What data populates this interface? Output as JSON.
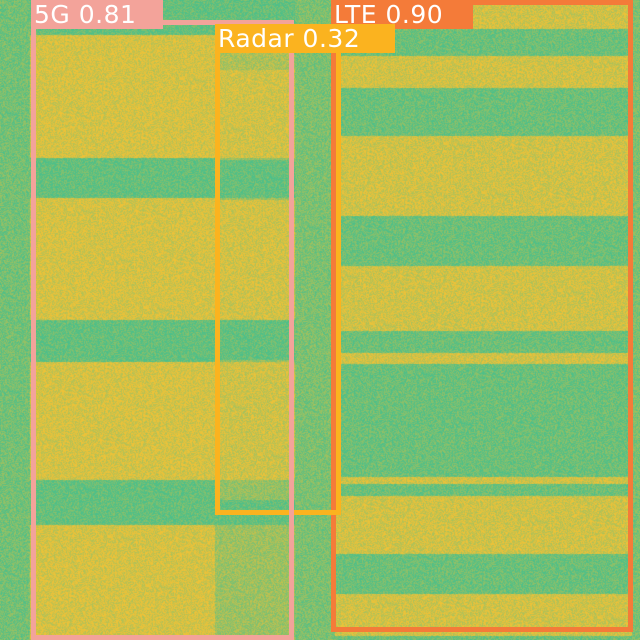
{
  "detections": [
    {
      "class": "LTE",
      "score": "0.90",
      "label": "LTE 0.90",
      "color": "#f47b39"
    },
    {
      "class": "Radar",
      "score": "0.32",
      "label": "Radar 0.32",
      "color": "#fbb31f"
    },
    {
      "class": "5G",
      "score": "0.81",
      "label": "5G 0.81",
      "color": "#f3a39a"
    }
  ],
  "palette": {
    "low": "#4cbf8a",
    "high": "#eec238"
  }
}
